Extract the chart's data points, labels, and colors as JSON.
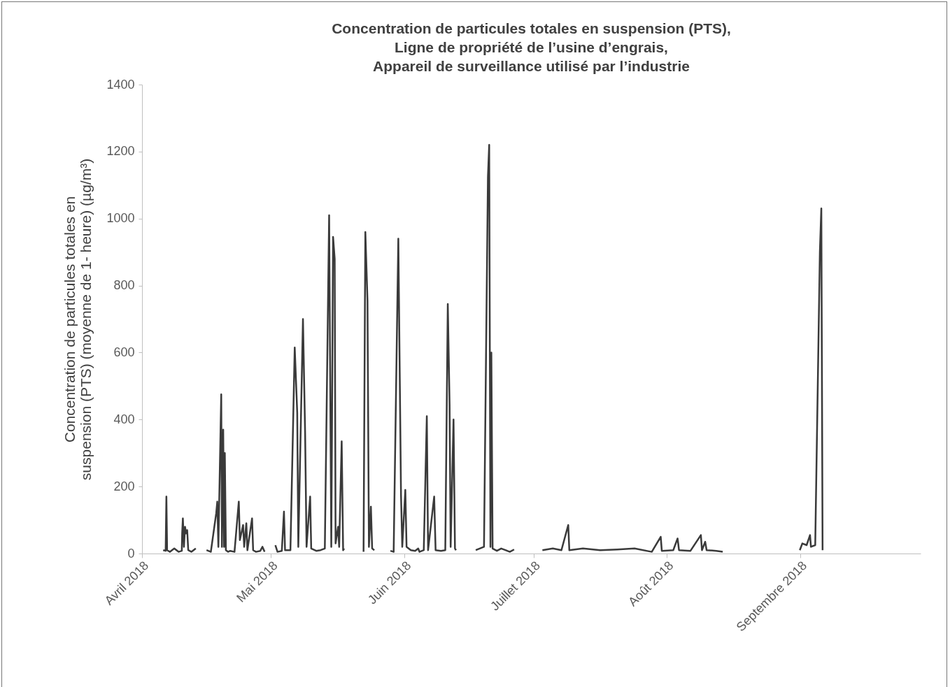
{
  "chart_data": {
    "type": "line",
    "title": "Concentration de particules totales en suspension (PTS), Ligne de propriété de l’usine d’engrais, Appareil de surveillance utilisé par l’industrie",
    "ylabel": "Concentration de particules totales en suspension (PTS) (moyenne de 1- heure) (µg/m³)",
    "x": [
      "2018-04-05T22:00",
      "2018-04-06T12:00",
      "2018-04-06T16:00",
      "2018-04-06T20:00",
      "2018-04-07T12:00",
      "2018-04-08T12:00",
      "2018-04-09T12:00",
      "2018-04-10T06:00",
      "2018-04-10T08:00",
      "2018-04-10T12:00",
      "2018-04-10T18:00",
      "2018-04-11T00:00",
      "2018-04-11T06:00",
      "2018-04-11T12:00",
      "2018-04-11T18:00",
      "2018-04-12T12:00",
      "2018-04-13T12:00",
      "2018-04-14T12:00",
      "2018-04-16T00:00",
      "2018-04-17T00:00",
      "2018-04-18T06:00",
      "2018-04-18T12:00",
      "2018-04-18T18:00",
      "2018-04-19T10:00",
      "2018-04-19T14:00",
      "2018-04-19T21:00",
      "2018-04-20T02:00",
      "2018-04-20T06:00",
      "2018-04-20T12:00",
      "2018-04-21T00:00",
      "2018-04-21T12:00",
      "2018-04-22T12:00",
      "2018-04-23T12:00",
      "2018-04-23T18:00",
      "2018-04-24T12:00",
      "2018-04-24T18:00",
      "2018-04-25T06:00",
      "2018-04-25T12:00",
      "2018-04-26T14:00",
      "2018-04-26T20:00",
      "2018-04-27T12:00",
      "2018-04-28T12:00",
      "2018-04-29T00:00",
      "2018-04-29T12:00",
      "2018-04-30T12:00",
      "2018-05-02T00:00",
      "2018-05-02T12:00",
      "2018-05-03T12:00",
      "2018-05-04T00:00",
      "2018-05-04T06:00",
      "2018-05-05T12:00",
      "2018-05-06T12:00",
      "2018-05-07T02:00",
      "2018-05-07T08:00",
      "2018-05-08T10:00",
      "2018-05-08T22:00",
      "2018-05-09T06:00",
      "2018-05-10T02:00",
      "2018-05-10T08:00",
      "2018-05-11T12:00",
      "2018-05-12T12:00",
      "2018-05-13T12:00",
      "2018-05-14T12:00",
      "2018-05-15T00:00",
      "2018-05-15T10:00",
      "2018-05-15T19:00",
      "2018-05-16T00:00",
      "2018-05-16T14:00",
      "2018-05-16T20:00",
      "2018-05-17T10:00",
      "2018-05-17T18:00",
      "2018-05-18T00:00",
      "2018-05-19T12:00",
      "2018-05-22T12:00",
      "2018-05-22T22:00",
      "2018-05-23T10:00",
      "2018-05-23T18:00",
      "2018-05-24T05:00",
      "2018-05-24T12:00",
      "2018-05-25T00:00",
      "2018-05-26T12:00",
      "2018-05-28T18:00",
      "2018-05-29T12:00",
      "2018-05-30T14:00",
      "2018-05-31T05:00",
      "2018-05-31T12:00",
      "2018-06-01T05:00",
      "2018-06-01T12:00",
      "2018-06-02T12:00",
      "2018-06-03T12:00",
      "2018-06-04T05:00",
      "2018-06-04T12:00",
      "2018-06-05T12:00",
      "2018-06-06T05:00",
      "2018-06-06T12:00",
      "2018-06-07T22:00",
      "2018-06-08T06:00",
      "2018-06-09T12:00",
      "2018-06-10T12:00",
      "2018-06-11T02:00",
      "2018-06-11T12:00",
      "2018-06-11T18:00",
      "2018-06-12T10:00",
      "2018-06-12T18:00",
      "2018-06-13T00:00",
      "2018-06-15T00:00",
      "2018-06-17T14:00",
      "2018-06-18T12:00",
      "2018-06-19T12:00",
      "2018-06-20T10:00",
      "2018-06-20T17:00",
      "2018-06-21T00:00",
      "2018-06-21T05:00",
      "2018-06-21T12:00",
      "2018-06-22T12:00",
      "2018-06-23T12:00",
      "2018-06-24T12:00",
      "2018-06-25T12:00",
      "2018-06-26T12:00",
      "2018-06-29T12:00",
      "2018-07-03T02:00",
      "2018-07-05T12:00",
      "2018-07-07T12:00",
      "2018-07-09T02:00",
      "2018-07-09T08:00",
      "2018-07-12T12:00",
      "2018-07-16T12:00",
      "2018-07-20T12:00",
      "2018-07-24T12:00",
      "2018-07-28T12:00",
      "2018-07-30T14:00",
      "2018-07-30T20:00",
      "2018-08-02T12:00",
      "2018-08-03T12:00",
      "2018-08-03T20:00",
      "2018-08-06T12:00",
      "2018-08-08T22:00",
      "2018-08-09T04:00",
      "2018-08-09T22:00",
      "2018-08-10T06:00",
      "2018-08-12T12:00",
      "2018-08-14T00:00",
      "2018-08-20T00:00",
      "2018-08-31T22:00",
      "2018-09-01T12:00",
      "2018-09-02T12:00",
      "2018-09-03T07:00",
      "2018-09-03T12:00",
      "2018-09-04T12:00",
      "2018-09-05T14:00",
      "2018-09-05T22:00",
      "2018-09-06T05:00"
    ],
    "series": [
      {
        "color": "#3a3a3a",
        "values": [
          10,
          8,
          170,
          10,
          5,
          15,
          5,
          8,
          60,
          105,
          20,
          80,
          60,
          70,
          10,
          5,
          15,
          null,
          10,
          5,
          120,
          155,
          20,
          475,
          20,
          370,
          20,
          300,
          10,
          5,
          8,
          5,
          155,
          40,
          85,
          20,
          90,
          10,
          105,
          10,
          5,
          8,
          20,
          5,
          null,
          25,
          5,
          8,
          125,
          10,
          10,
          615,
          420,
          20,
          700,
          360,
          20,
          170,
          15,
          8,
          10,
          15,
          1010,
          20,
          945,
          880,
          30,
          80,
          20,
          335,
          10,
          15,
          null,
          5,
          960,
          755,
          20,
          140,
          15,
          10,
          null,
          8,
          5,
          940,
          175,
          20,
          190,
          20,
          10,
          8,
          15,
          5,
          10,
          410,
          10,
          170,
          10,
          8,
          10,
          745,
          445,
          20,
          400,
          15,
          10,
          null,
          10,
          15,
          20,
          1125,
          1220,
          20,
          600,
          15,
          8,
          15,
          10,
          5,
          12,
          null,
          10,
          15,
          10,
          85,
          10,
          15,
          10,
          12,
          15,
          5,
          50,
          8,
          10,
          45,
          10,
          8,
          55,
          10,
          35,
          10,
          8,
          5,
          null,
          10,
          30,
          25,
          55,
          20,
          25,
          900,
          1030,
          10
        ]
      }
    ],
    "xlim": [
      "2018-04-01",
      "2018-09-29"
    ],
    "xticks": [
      {
        "value": "2018-04-01",
        "label": "Avril 2018"
      },
      {
        "value": "2018-05-01",
        "label": "Mai 2018"
      },
      {
        "value": "2018-06-01",
        "label": "Juin 2018"
      },
      {
        "value": "2018-07-01",
        "label": "Juillet 2018"
      },
      {
        "value": "2018-08-01",
        "label": "Août 2018"
      },
      {
        "value": "2018-09-01",
        "label": "Septembre 2018"
      }
    ],
    "ylim": [
      0,
      1400
    ],
    "yticks": [
      0,
      200,
      400,
      600,
      800,
      1000,
      1200,
      1400
    ],
    "grid": false,
    "marker": "none",
    "line_style": "solid"
  }
}
